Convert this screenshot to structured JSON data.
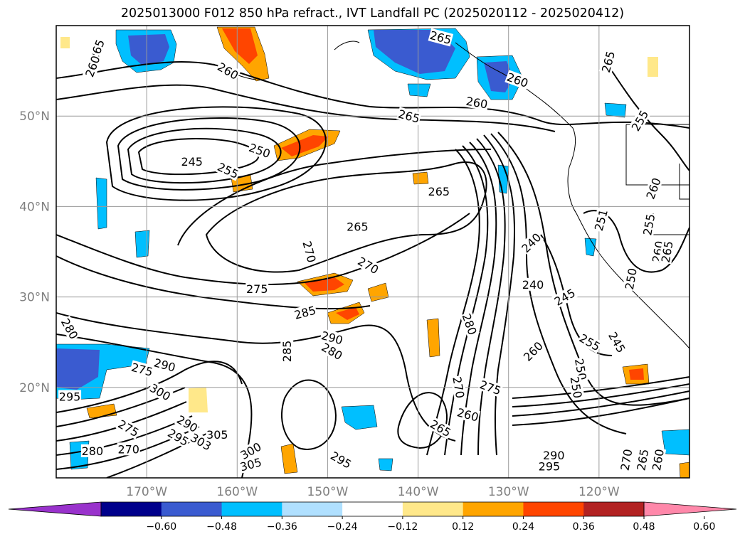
{
  "title": "2025013000 F012 850 hPa refract., IVT Landfall PC (2025020112 - 2025020412)",
  "map": {
    "lon_range": [
      -180,
      -110
    ],
    "lat_range": [
      10,
      60
    ],
    "lat_ticks": [
      {
        "lat": 50,
        "label": "50°N"
      },
      {
        "lat": 40,
        "label": "40°N"
      },
      {
        "lat": 30,
        "label": "30°N"
      },
      {
        "lat": 20,
        "label": "20°N"
      }
    ],
    "lon_ticks": [
      {
        "lon": -170,
        "label": "170°W"
      },
      {
        "lon": -160,
        "label": "160°W"
      },
      {
        "lon": -150,
        "label": "150°W"
      },
      {
        "lon": -140,
        "label": "140°W"
      },
      {
        "lon": -130,
        "label": "130°W"
      },
      {
        "lon": -120,
        "label": "120°W"
      }
    ],
    "contour_labels": [
      {
        "text": "265",
        "lon": -175.5,
        "lat": 57.3,
        "rot": 70
      },
      {
        "text": "260",
        "lon": -176,
        "lat": 55.5,
        "rot": 70
      },
      {
        "text": "260",
        "lon": -161,
        "lat": 55,
        "rot": -30
      },
      {
        "text": "265",
        "lon": -137.5,
        "lat": 58.7,
        "rot": -15
      },
      {
        "text": "260",
        "lon": -129,
        "lat": 54,
        "rot": -20
      },
      {
        "text": "265",
        "lon": -119,
        "lat": 56,
        "rot": 75
      },
      {
        "text": "260",
        "lon": -133.5,
        "lat": 51.5,
        "rot": -10
      },
      {
        "text": "265",
        "lon": -141,
        "lat": 50,
        "rot": -15
      },
      {
        "text": "255",
        "lon": -115.5,
        "lat": 49.5,
        "rot": 60
      },
      {
        "text": "245",
        "lon": -165,
        "lat": 45,
        "rot": 0
      },
      {
        "text": "250",
        "lon": -157.5,
        "lat": 46.2,
        "rot": -20
      },
      {
        "text": "255",
        "lon": -161,
        "lat": 44,
        "rot": -25
      },
      {
        "text": "265",
        "lon": -137.7,
        "lat": 41.7,
        "rot": 0
      },
      {
        "text": "260",
        "lon": -114,
        "lat": 42,
        "rot": 70
      },
      {
        "text": "265",
        "lon": -146.7,
        "lat": 37.8,
        "rot": 0
      },
      {
        "text": "255",
        "lon": -114.5,
        "lat": 38,
        "rot": 80
      },
      {
        "text": "251",
        "lon": -119.8,
        "lat": 38.5,
        "rot": 75
      },
      {
        "text": "240",
        "lon": -127.5,
        "lat": 36,
        "rot": 45
      },
      {
        "text": "270",
        "lon": -152,
        "lat": 35,
        "rot": -75
      },
      {
        "text": "260",
        "lon": -113.5,
        "lat": 35,
        "rot": 80
      },
      {
        "text": "265",
        "lon": -112.5,
        "lat": 35,
        "rot": 80
      },
      {
        "text": "270",
        "lon": -145.5,
        "lat": 33.5,
        "rot": -30
      },
      {
        "text": "240",
        "lon": -127.3,
        "lat": 31.4,
        "rot": 0
      },
      {
        "text": "250",
        "lon": -116.5,
        "lat": 32,
        "rot": 80
      },
      {
        "text": "275",
        "lon": -157.8,
        "lat": 30.9,
        "rot": 0
      },
      {
        "text": "245",
        "lon": -123.8,
        "lat": 30,
        "rot": 30
      },
      {
        "text": "285",
        "lon": -152.5,
        "lat": 28.3,
        "rot": 15
      },
      {
        "text": "280",
        "lon": -134.3,
        "lat": 27,
        "rot": -70
      },
      {
        "text": "280",
        "lon": -178.5,
        "lat": 26.5,
        "rot": -60
      },
      {
        "text": "290",
        "lon": -149.5,
        "lat": 25.5,
        "rot": -15
      },
      {
        "text": "285",
        "lon": -154.5,
        "lat": 24,
        "rot": 90
      },
      {
        "text": "280",
        "lon": -149.5,
        "lat": 24,
        "rot": -30
      },
      {
        "text": "255",
        "lon": -121,
        "lat": 25,
        "rot": -30
      },
      {
        "text": "245",
        "lon": -118,
        "lat": 25,
        "rot": -60
      },
      {
        "text": "260",
        "lon": -127.3,
        "lat": 24,
        "rot": 45
      },
      {
        "text": "275",
        "lon": -170.5,
        "lat": 22,
        "rot": -15
      },
      {
        "text": "290",
        "lon": -168,
        "lat": 22.5,
        "rot": -15
      },
      {
        "text": "250",
        "lon": -122,
        "lat": 22,
        "rot": -80
      },
      {
        "text": "250",
        "lon": -122.5,
        "lat": 20,
        "rot": -80
      },
      {
        "text": "300",
        "lon": -168.5,
        "lat": 19.5,
        "rot": -30
      },
      {
        "text": "295",
        "lon": -178.5,
        "lat": 19,
        "rot": 0
      },
      {
        "text": "270",
        "lon": -135.5,
        "lat": 20,
        "rot": -80
      },
      {
        "text": "275",
        "lon": -132,
        "lat": 20,
        "rot": -20
      },
      {
        "text": "260",
        "lon": -134.5,
        "lat": 17,
        "rot": -15
      },
      {
        "text": "265",
        "lon": -137.5,
        "lat": 15.5,
        "rot": -30
      },
      {
        "text": "290",
        "lon": -165.5,
        "lat": 16,
        "rot": -30
      },
      {
        "text": "275",
        "lon": -172,
        "lat": 15.5,
        "rot": -30
      },
      {
        "text": "295",
        "lon": -166.5,
        "lat": 14.5,
        "rot": -30
      },
      {
        "text": "305",
        "lon": -162.2,
        "lat": 14.8,
        "rot": 0
      },
      {
        "text": "303",
        "lon": -164,
        "lat": 14,
        "rot": -30
      },
      {
        "text": "280",
        "lon": -176,
        "lat": 13,
        "rot": 0
      },
      {
        "text": "270",
        "lon": -172,
        "lat": 13.2,
        "rot": 0
      },
      {
        "text": "300",
        "lon": -158.5,
        "lat": 13,
        "rot": 30
      },
      {
        "text": "305",
        "lon": -158.5,
        "lat": 11.5,
        "rot": 15
      },
      {
        "text": "295",
        "lon": -148.5,
        "lat": 12,
        "rot": -30
      },
      {
        "text": "290",
        "lon": -125,
        "lat": 12.5,
        "rot": 0
      },
      {
        "text": "295",
        "lon": -125.5,
        "lat": 11.3,
        "rot": 0
      },
      {
        "text": "270",
        "lon": -117,
        "lat": 12,
        "rot": 80
      },
      {
        "text": "265",
        "lon": -115.2,
        "lat": 12,
        "rot": 80
      },
      {
        "text": "260",
        "lon": -113.5,
        "lat": 12,
        "rot": 80
      }
    ]
  },
  "colorbar": {
    "colors": [
      "#9932cc",
      "#00008b",
      "#3a5bd0",
      "#00bfff",
      "#b0e0ff",
      "#ffffff",
      "#ffe88a",
      "#ffa500",
      "#ff4500",
      "#b22222",
      "#ff88aa"
    ],
    "ticks": [
      "−0.60",
      "−0.48",
      "−0.36",
      "−0.24",
      "−0.12",
      "0.12",
      "0.24",
      "0.36",
      "0.48",
      "0.60"
    ]
  }
}
